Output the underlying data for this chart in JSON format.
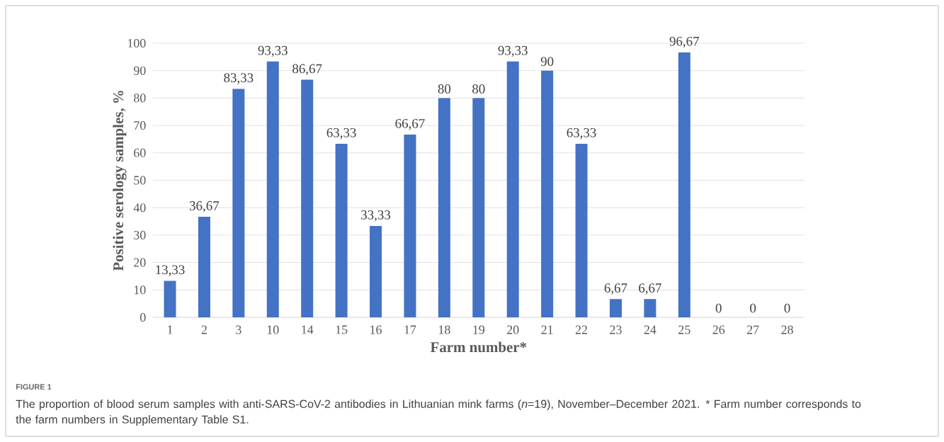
{
  "chart_data": {
    "type": "bar",
    "xlabel": "Farm number*",
    "ylabel": "Positive serology samples, %",
    "categories": [
      "1",
      "2",
      "3",
      "10",
      "14",
      "15",
      "16",
      "17",
      "18",
      "19",
      "20",
      "21",
      "22",
      "23",
      "24",
      "25",
      "26",
      "27",
      "28"
    ],
    "values": [
      13.33,
      36.67,
      83.33,
      93.33,
      86.67,
      63.33,
      33.33,
      66.67,
      80,
      80,
      93.33,
      90,
      63.33,
      6.67,
      6.67,
      96.67,
      0,
      0,
      0
    ],
    "value_labels": [
      "13,33",
      "36,67",
      "83,33",
      "93,33",
      "86,67",
      "63,33",
      "33,33",
      "66,67",
      "80",
      "80",
      "93,33",
      "90",
      "63,33",
      "6,67",
      "6,67",
      "96,67",
      "0",
      "0",
      "0"
    ],
    "color": "#4472c4",
    "ylim": [
      0,
      100
    ],
    "yticks": [
      0,
      10,
      20,
      30,
      40,
      50,
      60,
      70,
      80,
      90,
      100
    ],
    "grid": "y",
    "annotations": [
      "FIGURE 1",
      "The proportion of blood serum samples with anti-SARS-CoV-2 antibodies in Lithuanian mink farms (*n*=19), November–December 2021. * Farm number corresponds to the farm numbers in Supplementary Table S1."
    ]
  }
}
